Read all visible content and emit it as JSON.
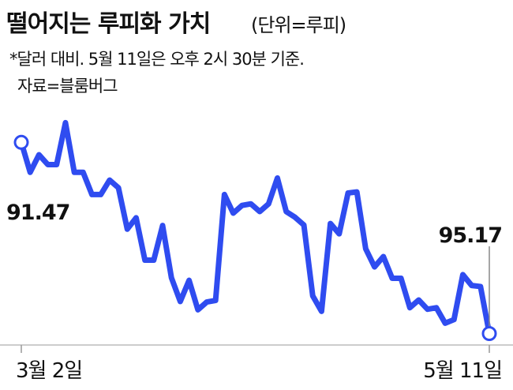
{
  "chart_data": {
    "type": "line",
    "title": "떨어지는 루피화 가치",
    "unit": "(단위=루피)",
    "note": "*달러 대비. 5월 11일은 오후 2시 30분 기준.",
    "source": "자료=블룸버그",
    "categories": [
      "3월 2일",
      null,
      null,
      null,
      null,
      null,
      null,
      null,
      null,
      null,
      null,
      null,
      null,
      null,
      null,
      null,
      null,
      null,
      null,
      null,
      null,
      null,
      null,
      null,
      null,
      null,
      null,
      null,
      null,
      null,
      null,
      null,
      null,
      null,
      null,
      null,
      null,
      null,
      null,
      null,
      null,
      null,
      null,
      null,
      null,
      null,
      null,
      null,
      null,
      null,
      null,
      null,
      null,
      "5월 11일"
    ],
    "series": [
      {
        "color": "#2f4cf0",
        "values": [
          91.47,
          92.05,
          91.71,
          91.9,
          91.9,
          91.09,
          92.05,
          92.05,
          92.48,
          92.48,
          92.2,
          92.35,
          93.15,
          92.93,
          93.75,
          93.75,
          93.08,
          94.09,
          94.55,
          94.14,
          94.71,
          94.56,
          94.53,
          92.48,
          92.84,
          92.69,
          92.66,
          92.81,
          92.66,
          92.16,
          92.81,
          92.92,
          93.07,
          94.44,
          94.74,
          93.04,
          93.24,
          92.45,
          92.43,
          93.53,
          93.88,
          93.68,
          94.1,
          94.1,
          94.67,
          94.52,
          94.7,
          94.67,
          94.97,
          94.9,
          94.03,
          94.24,
          94.26,
          95.17
        ]
      }
    ],
    "ylim": [
      95.3,
      90.9
    ]
  }
}
